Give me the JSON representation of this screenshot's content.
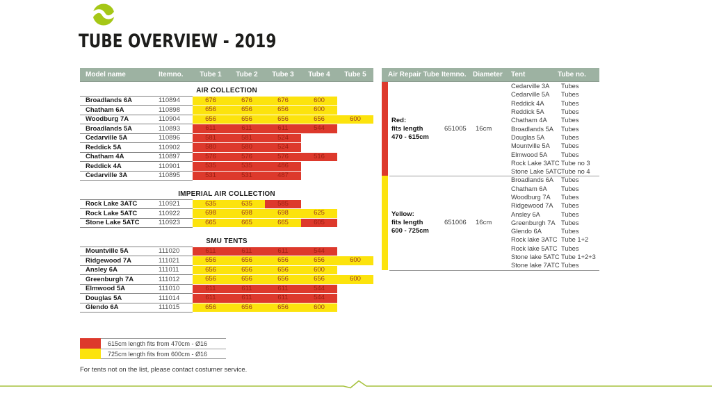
{
  "page": {
    "title": "TUBE OVERVIEW - 2019"
  },
  "colors": {
    "red": "#dd392c",
    "yellow": "#fce30d",
    "sage_header": "#9db2a2",
    "accent_green": "#a6c13c",
    "logo_green": "#a5c716"
  },
  "left_table": {
    "headers": [
      "Model name",
      "Itemno.",
      "Tube 1",
      "Tube 2",
      "Tube 3",
      "Tube 4",
      "Tube 5"
    ],
    "sections": [
      {
        "title": "AIR COLLECTION",
        "rows": [
          {
            "model": "Broadlands 6A",
            "itemno": "110894",
            "tubes": [
              [
                "676",
                "y"
              ],
              [
                "676",
                "y"
              ],
              [
                "676",
                "y"
              ],
              [
                "600",
                "y"
              ]
            ]
          },
          {
            "model": "Chatham 6A",
            "itemno": "110898",
            "tubes": [
              [
                "656",
                "y"
              ],
              [
                "656",
                "y"
              ],
              [
                "656",
                "y"
              ],
              [
                "600",
                "y"
              ]
            ]
          },
          {
            "model": "Woodburg 7A",
            "itemno": "110904",
            "tubes": [
              [
                "656",
                "y"
              ],
              [
                "656",
                "y"
              ],
              [
                "656",
                "y"
              ],
              [
                "656",
                "y"
              ],
              [
                "600",
                "y"
              ]
            ]
          },
          {
            "model": "Broadlands 5A",
            "itemno": "110893",
            "tubes": [
              [
                "611",
                "r"
              ],
              [
                "611",
                "r"
              ],
              [
                "611",
                "r"
              ],
              [
                "544",
                "r"
              ]
            ]
          },
          {
            "model": "Cedarville 5A",
            "itemno": "110896",
            "tubes": [
              [
                "581",
                "r"
              ],
              [
                "581",
                "r"
              ],
              [
                "524",
                "r"
              ]
            ]
          },
          {
            "model": "Reddick 5A",
            "itemno": "110902",
            "tubes": [
              [
                "580",
                "r"
              ],
              [
                "580",
                "r"
              ],
              [
                "524",
                "r"
              ]
            ]
          },
          {
            "model": "Chatham 4A",
            "itemno": "110897",
            "tubes": [
              [
                "576",
                "r"
              ],
              [
                "576",
                "r"
              ],
              [
                "576",
                "r"
              ],
              [
                "516",
                "r"
              ]
            ]
          },
          {
            "model": "Reddick 4A",
            "itemno": "110901",
            "tubes": [
              [
                "535",
                "r"
              ],
              [
                "535",
                "r"
              ],
              [
                "486",
                "r"
              ]
            ]
          },
          {
            "model": "Cedarville 3A",
            "itemno": "110895",
            "tubes": [
              [
                "531",
                "r"
              ],
              [
                "531",
                "r"
              ],
              [
                "487",
                "r"
              ]
            ]
          }
        ]
      },
      {
        "title": "IMPERIAL AIR COLLECTION",
        "rows": [
          {
            "model": "Rock Lake 3ATC",
            "itemno": "110921",
            "tubes": [
              [
                "635",
                "y"
              ],
              [
                "635",
                "y"
              ],
              [
                "585",
                "r"
              ]
            ]
          },
          {
            "model": "Rock Lake 5ATC",
            "itemno": "110922",
            "tubes": [
              [
                "698",
                "y"
              ],
              [
                "698",
                "y"
              ],
              [
                "698",
                "y"
              ],
              [
                "625",
                "y"
              ]
            ]
          },
          {
            "model": "Stone Lake 5ATC",
            "itemno": "110923",
            "tubes": [
              [
                "665",
                "y"
              ],
              [
                "665",
                "y"
              ],
              [
                "665",
                "y"
              ],
              [
                "605",
                "r"
              ]
            ]
          }
        ]
      },
      {
        "title": "SMU TENTS",
        "rows": [
          {
            "model": "Mountville 5A",
            "itemno": "111020",
            "tubes": [
              [
                "611",
                "r"
              ],
              [
                "611",
                "r"
              ],
              [
                "611",
                "r"
              ],
              [
                "544",
                "r"
              ]
            ]
          },
          {
            "model": "Ridgewood 7A",
            "itemno": "111021",
            "tubes": [
              [
                "656",
                "y"
              ],
              [
                "656",
                "y"
              ],
              [
                "656",
                "y"
              ],
              [
                "656",
                "y"
              ],
              [
                "600",
                "y"
              ]
            ]
          },
          {
            "model": "Ansley 6A",
            "itemno": "111011",
            "tubes": [
              [
                "656",
                "y"
              ],
              [
                "656",
                "y"
              ],
              [
                "656",
                "y"
              ],
              [
                "600",
                "y"
              ]
            ]
          },
          {
            "model": "Greenburgh 7A",
            "itemno": "111012",
            "tubes": [
              [
                "656",
                "y"
              ],
              [
                "656",
                "y"
              ],
              [
                "656",
                "y"
              ],
              [
                "656",
                "y"
              ],
              [
                "600",
                "y"
              ]
            ]
          },
          {
            "model": "Elmwood 5A",
            "itemno": "111010",
            "tubes": [
              [
                "611",
                "r"
              ],
              [
                "611",
                "r"
              ],
              [
                "611",
                "r"
              ],
              [
                "544",
                "r"
              ]
            ]
          },
          {
            "model": "Douglas 5A",
            "itemno": "111014",
            "tubes": [
              [
                "611",
                "r"
              ],
              [
                "611",
                "r"
              ],
              [
                "611",
                "r"
              ],
              [
                "544",
                "r"
              ]
            ]
          },
          {
            "model": "Glendo 6A",
            "itemno": "111015",
            "tubes": [
              [
                "656",
                "y"
              ],
              [
                "656",
                "y"
              ],
              [
                "656",
                "y"
              ],
              [
                "600",
                "y"
              ]
            ]
          }
        ]
      }
    ]
  },
  "right_table": {
    "headers": [
      "Air Repair Tube",
      "Itemno.",
      "Diameter",
      "Tent",
      "Tube no."
    ],
    "sections": [
      {
        "bar": "red",
        "label_lines": [
          "Red:",
          "fits length",
          "470 - 615cm"
        ],
        "itemno": "651005",
        "diameter": "16cm",
        "tents": [
          {
            "tent": "Cedarville 3A",
            "tube": "Tubes"
          },
          {
            "tent": "Cedarville 5A",
            "tube": "Tubes"
          },
          {
            "tent": "Reddick 4A",
            "tube": "Tubes"
          },
          {
            "tent": "Reddick 5A",
            "tube": "Tubes"
          },
          {
            "tent": "Chatham 4A",
            "tube": "Tubes"
          },
          {
            "tent": "Broadlands 5A",
            "tube": "Tubes"
          },
          {
            "tent": "Douglas 5A",
            "tube": "Tubes"
          },
          {
            "tent": "Mountville 5A",
            "tube": "Tubes"
          },
          {
            "tent": "Elmwood 5A",
            "tube": "Tubes"
          },
          {
            "tent": "Rock Lake 3ATC",
            "tube": "Tube no 3"
          },
          {
            "tent": "Stone Lake 5ATC",
            "tube": "Tube no 4"
          }
        ]
      },
      {
        "bar": "yellow",
        "label_lines": [
          "Yellow:",
          "fits length",
          "600 - 725cm"
        ],
        "itemno": "651006",
        "diameter": "16cm",
        "tents": [
          {
            "tent": "Broadlands 6A",
            "tube": "Tubes"
          },
          {
            "tent": "Chatham 6A",
            "tube": "Tubes"
          },
          {
            "tent": "Woodburg 7A",
            "tube": "Tubes"
          },
          {
            "tent": "Ridgewood 7A",
            "tube": "Tubes"
          },
          {
            "tent": "Ansley 6A",
            "tube": "Tubes"
          },
          {
            "tent": "Greenburgh 7A",
            "tube": "Tubes"
          },
          {
            "tent": "Glendo 6A",
            "tube": "Tubes"
          },
          {
            "tent": "Rock lake 3ATC",
            "tube": "Tube 1+2"
          },
          {
            "tent": "Rock lake 5ATC",
            "tube": "Tubes"
          },
          {
            "tent": "Stone lake 5ATC",
            "tube": "Tube 1+2+3"
          },
          {
            "tent": "Stone lake 7ATC",
            "tube": "Tubes"
          }
        ]
      }
    ]
  },
  "legend": [
    {
      "color": "red",
      "text": "615cm length fits from 470cm - Ø16"
    },
    {
      "color": "yellow",
      "text": "725cm length fits from 600cm - Ø16"
    }
  ],
  "footer_note": "For tents not on the list, please contact costumer service."
}
